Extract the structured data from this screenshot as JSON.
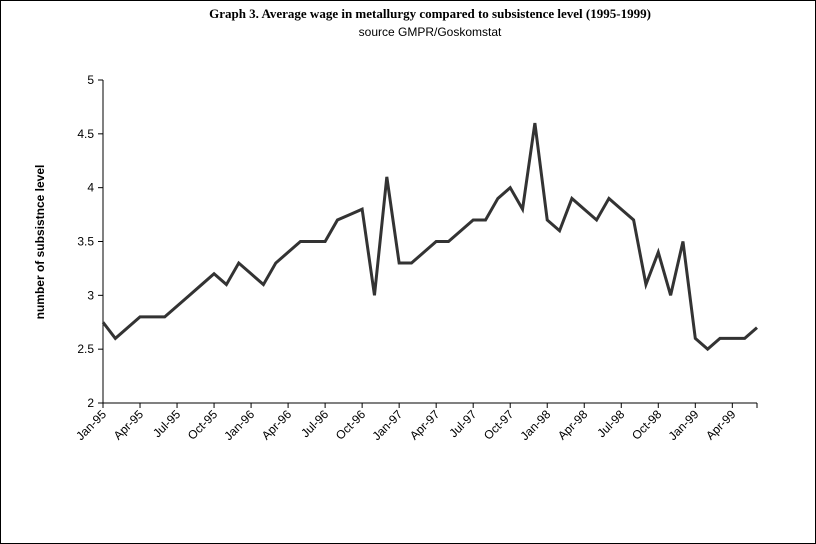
{
  "chart_data": {
    "type": "line",
    "title": "Graph 3. Average wage in metallurgy compared to subsistence level (1995-1999)",
    "subtitle": "source GMPR/Goskomstat",
    "y_label": "number of subsistnce level",
    "categories": [
      "Jan-95",
      null,
      null,
      "Apr-95",
      null,
      null,
      "Jul-95",
      null,
      null,
      "Oct-95",
      null,
      null,
      "Jan-96",
      null,
      null,
      "Apr-96",
      null,
      null,
      "Jul-96",
      null,
      null,
      "Oct-96",
      null,
      null,
      "Jan-97",
      null,
      null,
      "Apr-97",
      null,
      null,
      "Jul-97",
      null,
      null,
      "Oct-97",
      null,
      null,
      "Jan-98",
      null,
      null,
      "Apr-98",
      null,
      null,
      "Jul-98",
      null,
      null,
      "Oct-98",
      null,
      null,
      "Jan-99",
      null,
      null,
      "Apr-99",
      null,
      null
    ],
    "series": [
      {
        "name": null,
        "color": "#333333",
        "values": [
          2.75,
          2.6,
          2.7,
          2.8,
          2.8,
          2.8,
          2.9,
          3.0,
          3.1,
          3.2,
          3.1,
          3.3,
          3.2,
          3.1,
          3.3,
          3.4,
          3.5,
          3.5,
          3.5,
          3.7,
          3.75,
          3.8,
          3.0,
          4.1,
          3.3,
          3.3,
          3.4,
          3.5,
          3.5,
          3.6,
          3.7,
          3.7,
          3.9,
          4.0,
          3.8,
          4.6,
          3.7,
          3.6,
          3.9,
          3.8,
          3.7,
          3.9,
          3.8,
          3.7,
          3.1,
          3.4,
          3.0,
          3.5,
          2.6,
          2.5,
          2.6,
          2.6,
          2.6,
          2.7
        ]
      }
    ],
    "ylim": [
      2,
      5
    ],
    "yticks": [
      2,
      2.5,
      3,
      3.5,
      4,
      4.5,
      5
    ],
    "grid": false
  }
}
